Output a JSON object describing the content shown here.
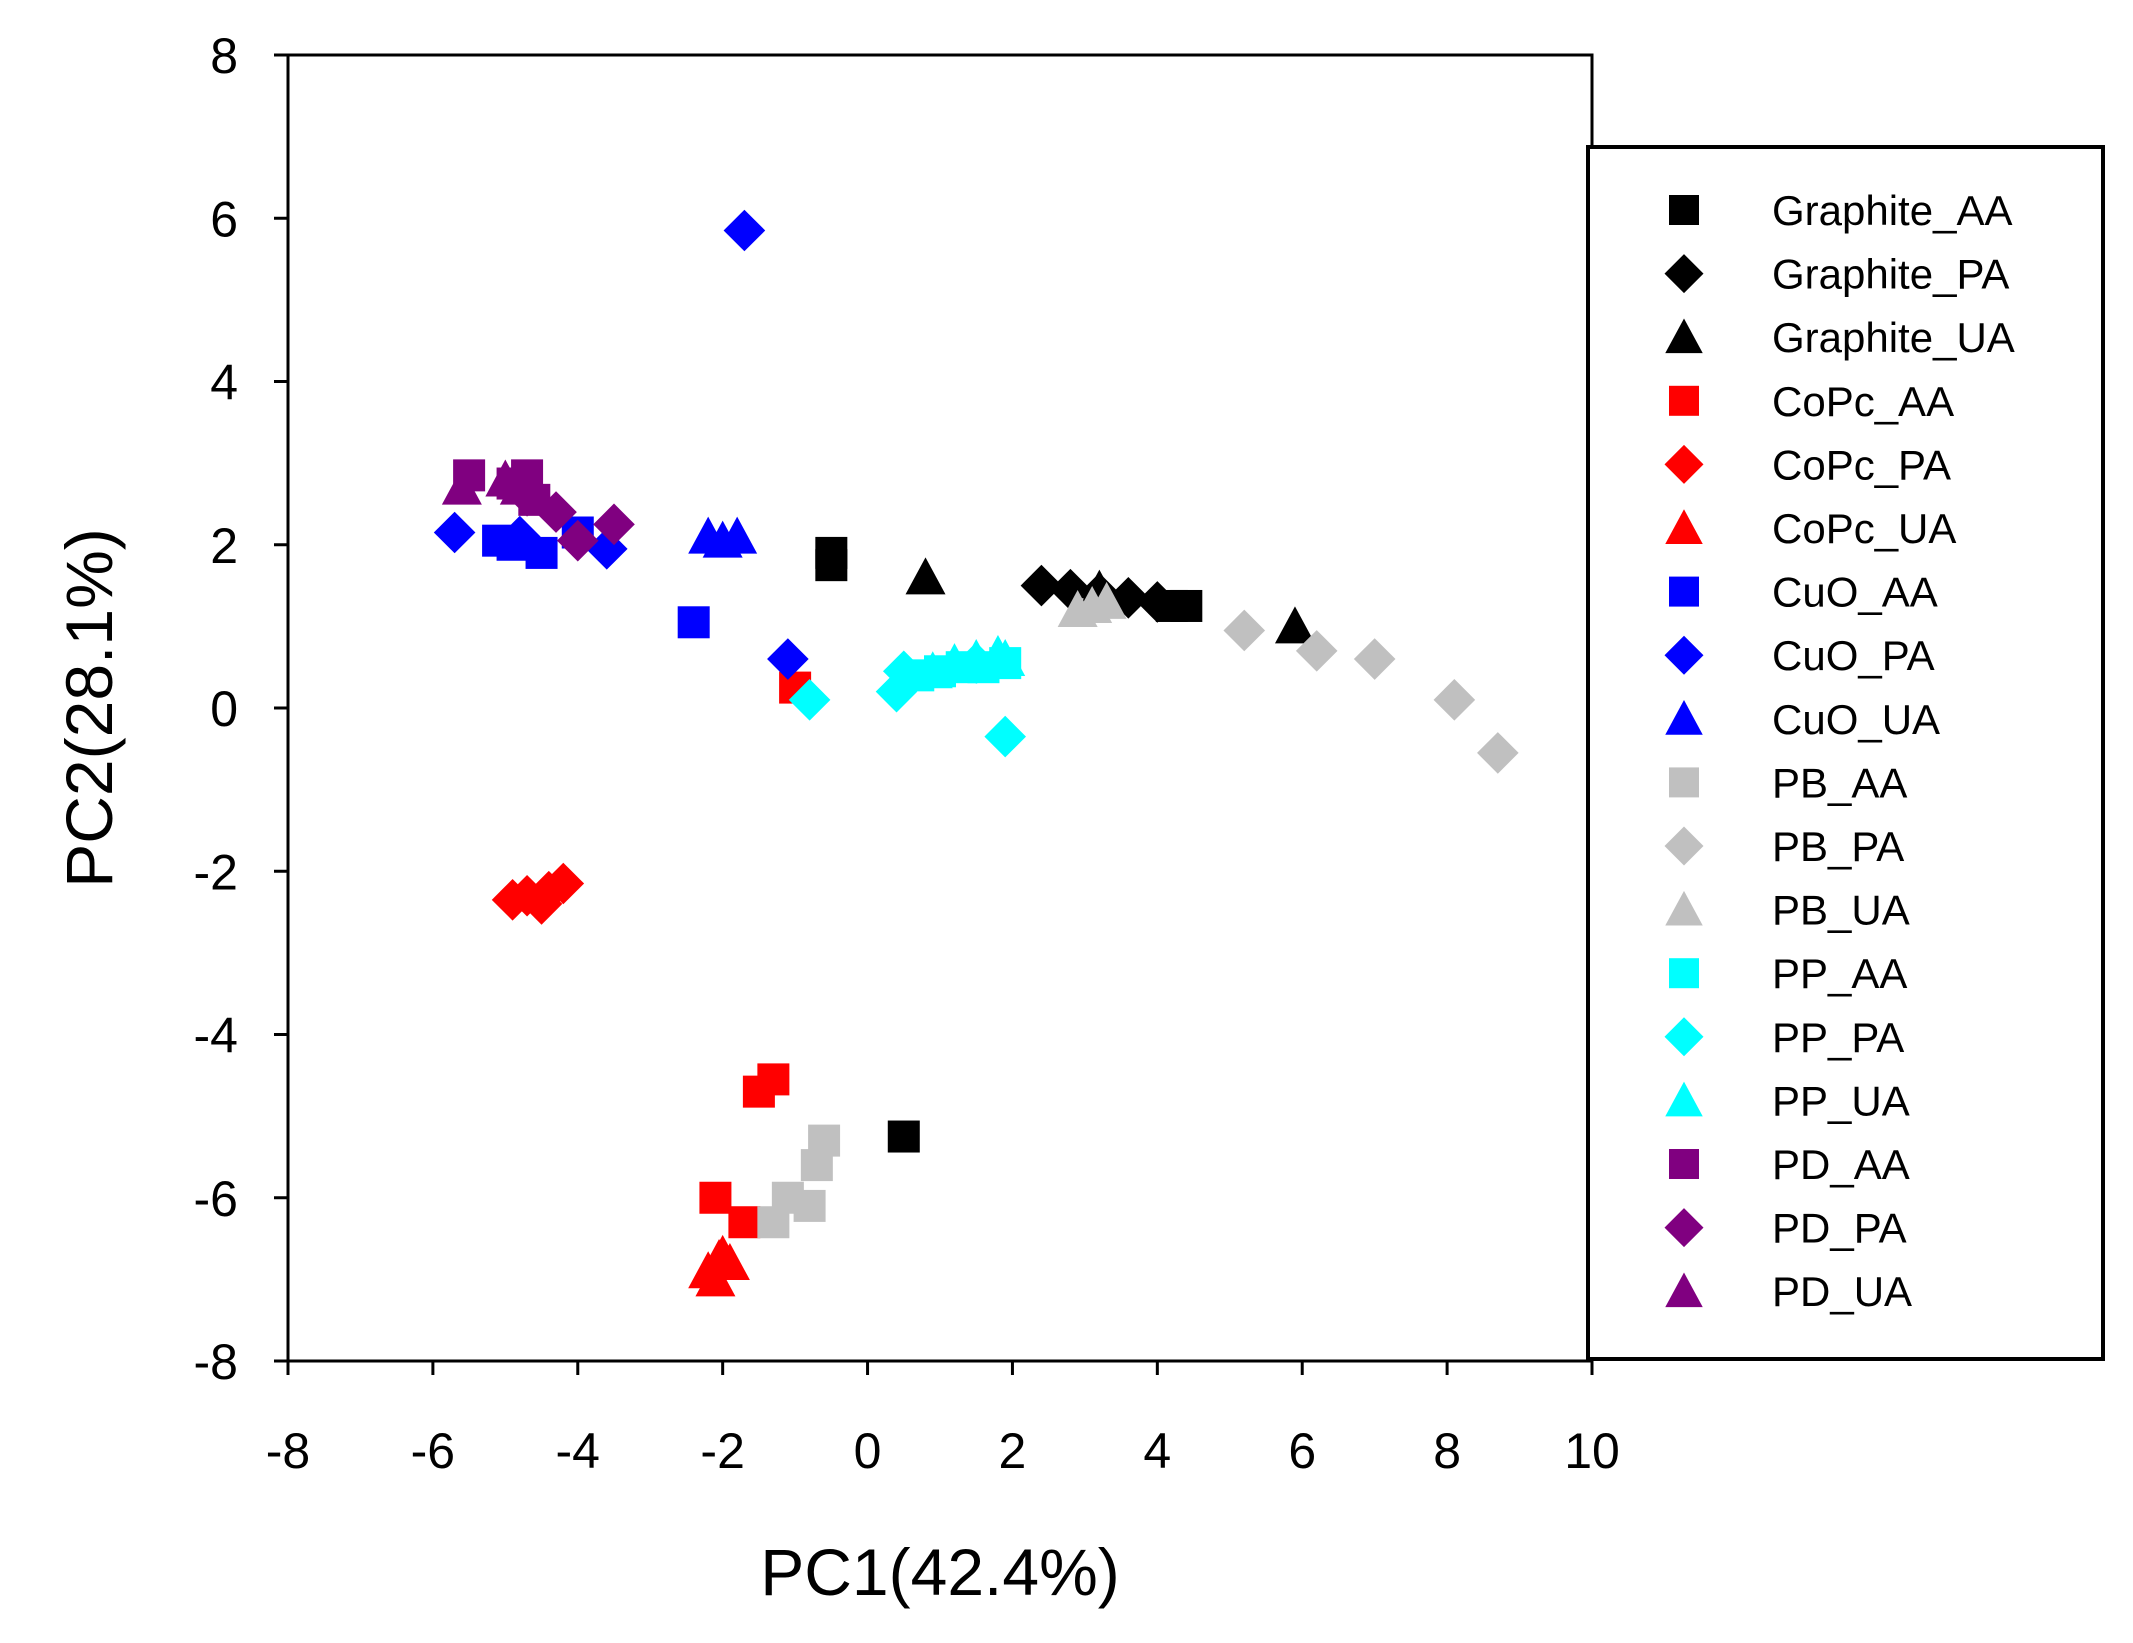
{
  "chart_data": {
    "type": "scatter",
    "title": "",
    "xlabel": "PC1(42.4%)",
    "ylabel": "PC2(28.1%)",
    "xlim": [
      -8,
      10
    ],
    "ylim": [
      -8,
      8
    ],
    "xticks": [
      -8,
      -6,
      -4,
      -2,
      0,
      2,
      4,
      6,
      8,
      10
    ],
    "yticks": [
      -8,
      -6,
      -4,
      -2,
      0,
      2,
      4,
      6,
      8
    ],
    "grid": false,
    "legend_position": "right",
    "series": [
      {
        "name": "Graphite_AA",
        "color": "#000000",
        "marker": "square",
        "x": [
          -0.5,
          -0.5,
          4.2,
          4.4,
          0.5
        ],
        "y": [
          1.9,
          1.75,
          1.25,
          1.25,
          -5.25
        ]
      },
      {
        "name": "Graphite_PA",
        "color": "#000000",
        "marker": "diamond",
        "x": [
          2.4,
          2.8,
          3.2,
          3.6,
          4.0
        ],
        "y": [
          1.5,
          1.45,
          1.4,
          1.35,
          1.3
        ]
      },
      {
        "name": "Graphite_UA",
        "color": "#000000",
        "marker": "triangle",
        "x": [
          0.8,
          5.9,
          3.2
        ],
        "y": [
          1.6,
          1.0,
          1.45
        ]
      },
      {
        "name": "CoPc_AA",
        "color": "#ff0000",
        "marker": "square",
        "x": [
          -1.0,
          -1.5,
          -1.3,
          -2.1,
          -1.7
        ],
        "y": [
          0.25,
          -4.7,
          -4.55,
          -6.0,
          -6.3
        ]
      },
      {
        "name": "CoPc_PA",
        "color": "#ff0000",
        "marker": "diamond",
        "x": [
          -4.9,
          -4.7,
          -4.5,
          -4.4,
          -4.2
        ],
        "y": [
          -2.35,
          -2.3,
          -2.4,
          -2.25,
          -2.15
        ]
      },
      {
        "name": "CoPc_UA",
        "color": "#ff0000",
        "marker": "triangle",
        "x": [
          -2.2,
          -2.0,
          -2.1,
          -1.9,
          -2.05
        ],
        "y": [
          -6.9,
          -6.7,
          -7.0,
          -6.8,
          -6.75
        ]
      },
      {
        "name": "CuO_AA",
        "color": "#0000ff",
        "marker": "square",
        "x": [
          -5.1,
          -4.9,
          -4.5,
          -4.0,
          -2.4
        ],
        "y": [
          2.05,
          2.0,
          1.9,
          2.15,
          1.05
        ]
      },
      {
        "name": "CuO_PA",
        "color": "#0000ff",
        "marker": "diamond",
        "x": [
          -5.7,
          -3.6,
          -1.7,
          -1.1,
          -4.8
        ],
        "y": [
          2.15,
          1.95,
          5.85,
          0.6,
          2.1
        ]
      },
      {
        "name": "CuO_UA",
        "color": "#0000ff",
        "marker": "triangle",
        "x": [
          -2.2,
          -2.0,
          -1.8
        ],
        "y": [
          2.1,
          2.05,
          2.1
        ]
      },
      {
        "name": "PB_AA",
        "color": "#c0c0c0",
        "marker": "square",
        "x": [
          -0.6,
          -0.7,
          -0.8,
          -1.1,
          -1.3
        ],
        "y": [
          -5.3,
          -5.6,
          -6.1,
          -6.0,
          -6.3
        ]
      },
      {
        "name": "PB_PA",
        "color": "#c0c0c0",
        "marker": "diamond",
        "x": [
          5.2,
          6.2,
          7.0,
          8.1,
          8.7
        ],
        "y": [
          0.95,
          0.7,
          0.6,
          0.1,
          -0.55
        ]
      },
      {
        "name": "PB_UA",
        "color": "#c0c0c0",
        "marker": "triangle",
        "x": [
          2.9,
          3.1,
          3.3
        ],
        "y": [
          1.2,
          1.25,
          1.3
        ]
      },
      {
        "name": "PP_AA",
        "color": "#00ffff",
        "marker": "square",
        "x": [
          0.7,
          1.0,
          1.3,
          1.6,
          1.9
        ],
        "y": [
          0.4,
          0.45,
          0.5,
          0.5,
          0.55
        ]
      },
      {
        "name": "PP_PA",
        "color": "#00ffff",
        "marker": "diamond",
        "x": [
          -0.8,
          0.4,
          0.5,
          1.9,
          1.5
        ],
        "y": [
          0.1,
          0.2,
          0.45,
          -0.35,
          0.55
        ]
      },
      {
        "name": "PP_UA",
        "color": "#00ffff",
        "marker": "triangle",
        "x": [
          1.2,
          1.5,
          1.8,
          1.9,
          0.9
        ],
        "y": [
          0.55,
          0.6,
          0.65,
          0.6,
          0.45
        ]
      },
      {
        "name": "PD_AA",
        "color": "#800080",
        "marker": "square",
        "x": [
          -5.5,
          -4.9,
          -4.7,
          -4.6
        ],
        "y": [
          2.85,
          2.75,
          2.85,
          2.55
        ]
      },
      {
        "name": "PD_PA",
        "color": "#800080",
        "marker": "diamond",
        "x": [
          -4.3,
          -4.0,
          -3.5,
          -4.7
        ],
        "y": [
          2.4,
          2.05,
          2.25,
          2.6
        ]
      },
      {
        "name": "PD_UA",
        "color": "#800080",
        "marker": "triangle",
        "x": [
          -5.6,
          -5.0,
          -4.8
        ],
        "y": [
          2.7,
          2.8,
          2.7
        ]
      }
    ]
  }
}
